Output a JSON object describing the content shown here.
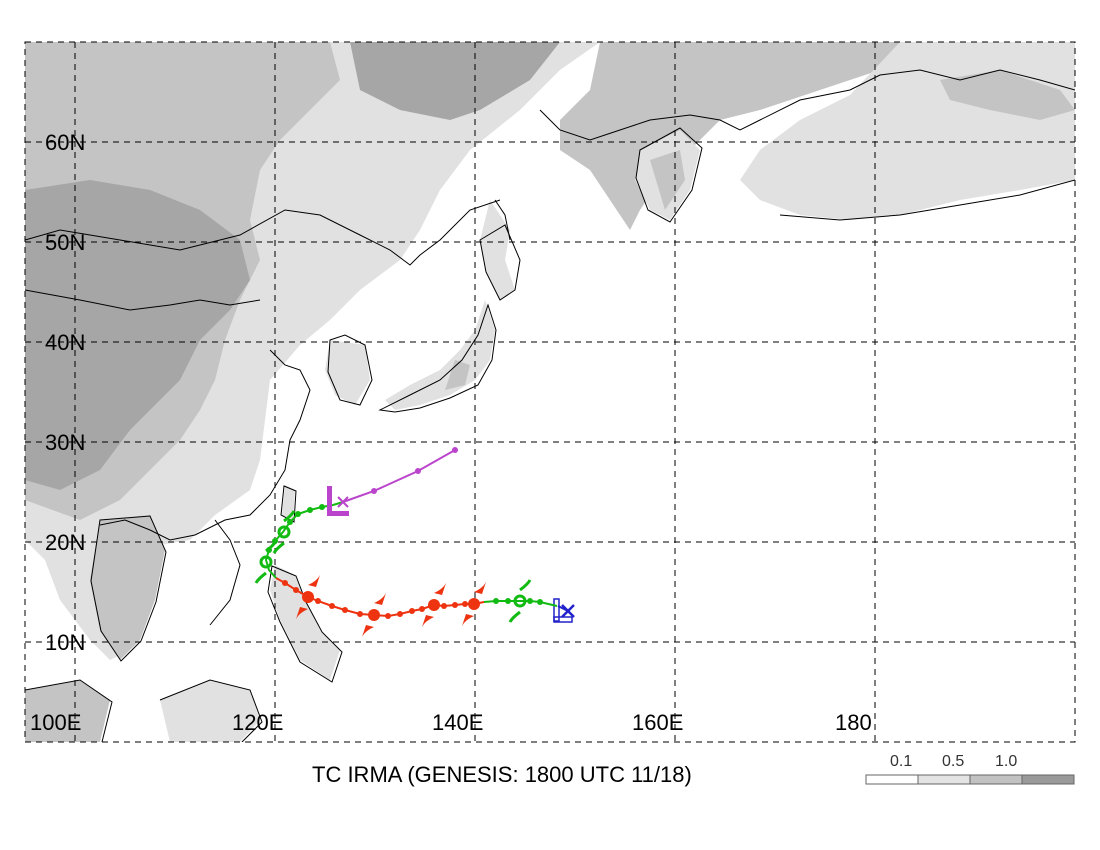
{
  "map": {
    "title": "TC IRMA (GENESIS: 1800 UTC 11/18)",
    "lat_labels": [
      "60N",
      "50N",
      "40N",
      "30N",
      "20N",
      "10N"
    ],
    "lon_labels": [
      "100E",
      "120E",
      "140E",
      "160E",
      "180"
    ],
    "legend": {
      "labels": [
        "0.1",
        "0.5",
        "1.0"
      ],
      "colors": [
        "#ffffff",
        "#e3e3e3",
        "#c2c2c2",
        "#9a9a9a"
      ]
    },
    "colors": {
      "ocean": "#ffffff",
      "land_shade_light": "#e1e1e1",
      "land_shade_mid": "#c4c4c4",
      "land_shade_dark": "#a6a6a6",
      "track_red": "#ee3311",
      "track_green": "#11bb11",
      "track_magenta": "#bb44cc",
      "track_blue": "#2222cc"
    },
    "icons": {
      "genesis": "x-mark-icon",
      "tropical_storm": "storm-symbol-icon",
      "typhoon": "typhoon-symbol-icon",
      "low": "low-L-icon"
    }
  }
}
